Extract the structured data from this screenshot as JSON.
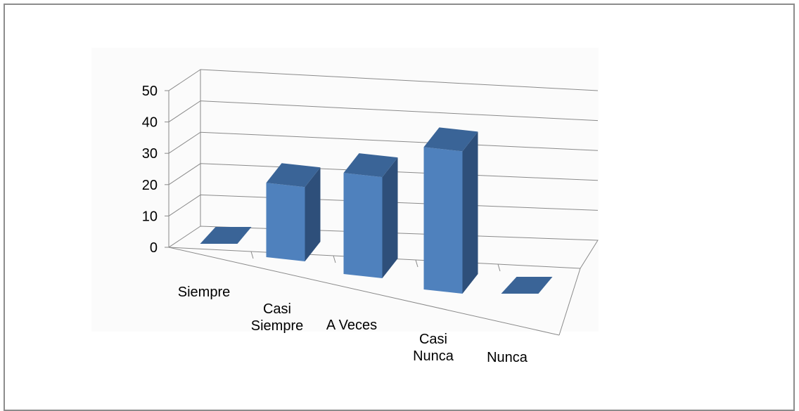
{
  "chart_data": {
    "type": "bar",
    "view": "3d-columns",
    "categories": [
      "Siempre",
      "Casi Siempre",
      "A Veces",
      "Casi Nunca",
      "Nunca"
    ],
    "category_lines": [
      [
        "Siempre"
      ],
      [
        "Casi",
        "Siempre"
      ],
      [
        "A Veces"
      ],
      [
        "Casi",
        "Nunca"
      ],
      [
        "Nunca"
      ]
    ],
    "values": [
      0,
      24,
      33,
      47,
      0
    ],
    "ylim": [
      0,
      50
    ],
    "yticks": [
      0,
      10,
      20,
      30,
      40,
      50
    ],
    "title": "",
    "xlabel": "",
    "ylabel": "",
    "grid": true,
    "legend": "none",
    "colors": {
      "front": "#4F81BD",
      "side": "#2E4F7A",
      "top": "#3A6497",
      "gridline": "#8a8a8a",
      "frame": "#8c8c8c"
    }
  }
}
